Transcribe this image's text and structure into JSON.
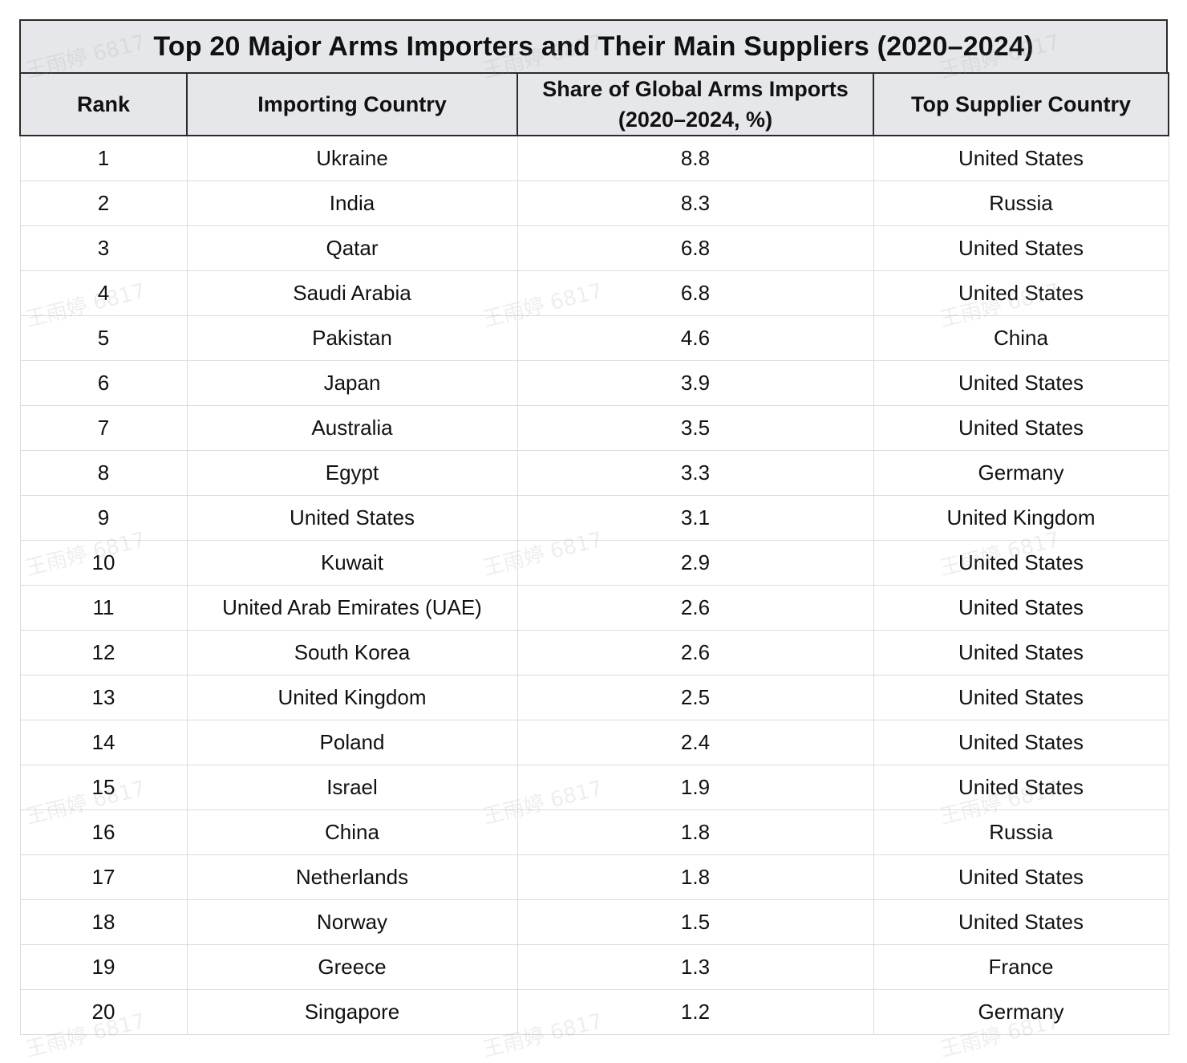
{
  "chart_data": {
    "type": "table",
    "title": "Top 20 Major Arms Importers and Their Main Suppliers (2020–2024)",
    "columns": [
      "Rank",
      "Importing Country",
      "Share of Global Arms Imports (2020–2024, %)",
      "Top Supplier Country"
    ],
    "rows": [
      [
        "1",
        "Ukraine",
        "8.8",
        "United States"
      ],
      [
        "2",
        "India",
        "8.3",
        "Russia"
      ],
      [
        "3",
        "Qatar",
        "6.8",
        "United States"
      ],
      [
        "4",
        "Saudi Arabia",
        "6.8",
        "United States"
      ],
      [
        "5",
        "Pakistan",
        "4.6",
        "China"
      ],
      [
        "6",
        "Japan",
        "3.9",
        "United States"
      ],
      [
        "7",
        "Australia",
        "3.5",
        "United States"
      ],
      [
        "8",
        "Egypt",
        "3.3",
        "Germany"
      ],
      [
        "9",
        "United States",
        "3.1",
        "United Kingdom"
      ],
      [
        "10",
        "Kuwait",
        "2.9",
        "United States"
      ],
      [
        "11",
        "United Arab Emirates (UAE)",
        "2.6",
        "United States"
      ],
      [
        "12",
        "South Korea",
        "2.6",
        "United States"
      ],
      [
        "13",
        "United Kingdom",
        "2.5",
        "United States"
      ],
      [
        "14",
        "Poland",
        "2.4",
        "United States"
      ],
      [
        "15",
        "Israel",
        "1.9",
        "United States"
      ],
      [
        "16",
        "China",
        "1.8",
        "Russia"
      ],
      [
        "17",
        "Netherlands",
        "1.8",
        "United States"
      ],
      [
        "18",
        "Norway",
        "1.5",
        "United States"
      ],
      [
        "19",
        "Greece",
        "1.3",
        "France"
      ],
      [
        "20",
        "Singapore",
        "1.2",
        "Germany"
      ]
    ]
  },
  "watermark": "王雨婷 6817",
  "colors": {
    "header_bg": "#e6e7ea",
    "border_dark": "#2b2b2b",
    "border_light": "#dcdcdc"
  }
}
